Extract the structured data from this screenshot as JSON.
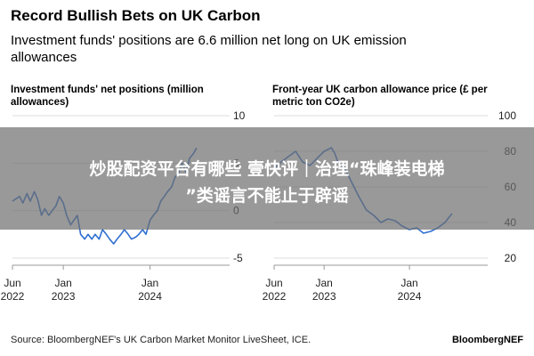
{
  "header": {
    "title": "Record Bullish Bets on UK Carbon",
    "subtitle": "Investment funds' positions are 6.6 million net long on UK emission allowances"
  },
  "chart_data": [
    {
      "type": "line",
      "title": "Investment funds' net positions (million allowances)",
      "x_ticks": [
        "Jun|2022",
        "Jan|2023",
        "Jan|2024"
      ],
      "y_ticks": [
        "10",
        "5",
        "0",
        "-5"
      ],
      "ylim": [
        -5,
        10
      ],
      "xlim": [
        "2022-06",
        "2024-12"
      ],
      "grid": true,
      "color": "#2f6fd0",
      "series": [
        {
          "x": [
            "2022-06-01",
            "2022-07-01",
            "2022-07-15",
            "2022-08-01",
            "2022-08-15",
            "2022-09-01",
            "2022-09-15",
            "2022-10-01",
            "2022-10-15",
            "2022-11-01",
            "2022-11-15",
            "2022-12-01",
            "2022-12-15",
            "2023-01-01",
            "2023-01-15",
            "2023-02-01",
            "2023-02-15",
            "2023-03-01",
            "2023-03-15",
            "2023-04-01",
            "2023-04-15",
            "2023-05-01",
            "2023-05-15",
            "2023-06-01",
            "2023-06-15",
            "2023-07-01",
            "2023-07-15",
            "2023-08-01",
            "2023-08-15",
            "2023-09-01",
            "2023-09-15",
            "2023-10-01",
            "2023-10-15",
            "2023-11-01",
            "2023-11-15",
            "2023-12-01",
            "2023-12-15",
            "2024-01-01",
            "2024-01-15",
            "2024-02-01",
            "2024-02-15",
            "2024-03-01",
            "2024-03-15",
            "2024-04-01",
            "2024-04-15",
            "2024-05-01",
            "2024-05-15",
            "2024-06-01",
            "2024-06-15",
            "2024-07-01",
            "2024-07-15"
          ],
          "y": [
            1.0,
            1.5,
            0.8,
            1.8,
            1.0,
            2.0,
            1.2,
            -0.5,
            0.2,
            -0.5,
            0.0,
            0.5,
            1.5,
            0.8,
            -0.5,
            -1.5,
            -1.0,
            -0.5,
            -2.5,
            -3.0,
            -2.5,
            -3.0,
            -2.5,
            -3.0,
            -2.0,
            -2.5,
            -3.0,
            -3.5,
            -3.0,
            -2.5,
            -2.0,
            -2.5,
            -3.0,
            -2.8,
            -2.5,
            -2.0,
            -2.5,
            -1.0,
            -0.5,
            0.0,
            1.0,
            1.5,
            2.0,
            2.5,
            3.5,
            4.0,
            5.0,
            4.0,
            5.5,
            6.0,
            6.6
          ]
        }
      ]
    },
    {
      "type": "line",
      "title": "Front-year UK carbon allowance price (£ per metric ton CO2e)",
      "x_ticks": [
        "Jun|2022",
        "Jan|2023",
        "Jan|2024"
      ],
      "y_ticks": [
        "100",
        "80",
        "60",
        "40",
        "20"
      ],
      "ylim": [
        20,
        100
      ],
      "xlim": [
        "2022-06",
        "2024-12"
      ],
      "grid": true,
      "color": "#2f6fd0",
      "series": [
        {
          "x": [
            "2022-06-01",
            "2022-07-01",
            "2022-08-01",
            "2022-09-01",
            "2022-10-01",
            "2022-11-01",
            "2022-12-01",
            "2023-01-01",
            "2023-02-01",
            "2023-02-15",
            "2023-03-01",
            "2023-04-01",
            "2023-05-01",
            "2023-06-01",
            "2023-07-01",
            "2023-08-01",
            "2023-09-01",
            "2023-10-01",
            "2023-11-01",
            "2023-12-01",
            "2024-01-01",
            "2024-02-01",
            "2024-03-01",
            "2024-04-01",
            "2024-05-01",
            "2024-06-01",
            "2024-07-01"
          ],
          "y": [
            70,
            74,
            77,
            80,
            74,
            72,
            76,
            80,
            82,
            79,
            74,
            70,
            62,
            54,
            47,
            44,
            40,
            42,
            41,
            38,
            36,
            37,
            34,
            35,
            37,
            40,
            45
          ]
        }
      ]
    }
  ],
  "footer": {
    "source": "Source: BloombergNEF's UK Carbon Market Monitor LiveSheet, ICE.",
    "brand": "BloombergNEF"
  },
  "overlay": {
    "line1": "炒股配资平台有哪些 壹快评｜治理“珠峰装电梯",
    "line2": "”类谣言不能止于辟谣"
  }
}
